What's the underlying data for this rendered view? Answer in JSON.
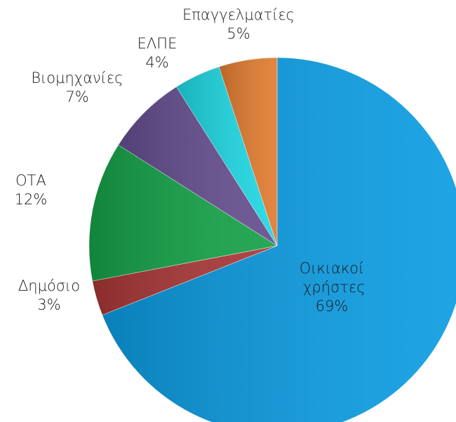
{
  "chart_data": {
    "type": "pie",
    "categories": [
      "Οικιακοί χρήστες",
      "Δημόσιο",
      "ΟΤΑ",
      "Βιομηχανίες",
      "ΕΛΠΕ",
      "Επαγγελματίες"
    ],
    "values": [
      69,
      3,
      12,
      7,
      4,
      5
    ],
    "value_labels": [
      "69%",
      "3%",
      "12%",
      "7%",
      "4%",
      "5%"
    ],
    "colors": [
      "#0b9ce2",
      "#a83636",
      "#14a147",
      "#644d8e",
      "#1ed7e2",
      "#e07b2f"
    ]
  }
}
